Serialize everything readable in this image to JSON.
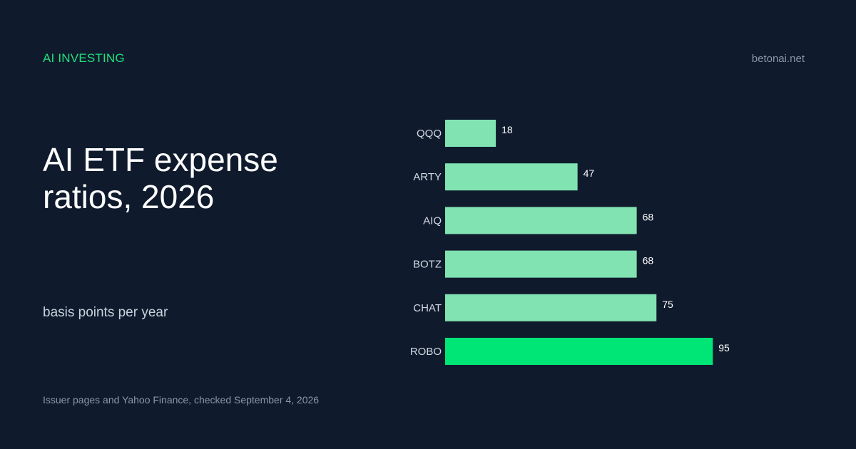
{
  "header": {
    "kicker": "AI INVESTING",
    "site": "betonai.net"
  },
  "colors": {
    "bar": "#81e3b1",
    "bar_highlight": "#00e676",
    "background": "#0f1b2d"
  },
  "chart_data": {
    "type": "bar",
    "orientation": "horizontal",
    "title": "AI ETF expense ratios, 2026",
    "subtitle": "basis points per year",
    "source": "Issuer pages and Yahoo Finance, checked September 4, 2026",
    "categories": [
      "QQQ",
      "ARTY",
      "AIQ",
      "BOTZ",
      "CHAT",
      "ROBO"
    ],
    "values": [
      18,
      47,
      68,
      68,
      75,
      95
    ],
    "highlight": "ROBO",
    "xlim": [
      0,
      100
    ],
    "grid": false,
    "data_labels": true
  }
}
